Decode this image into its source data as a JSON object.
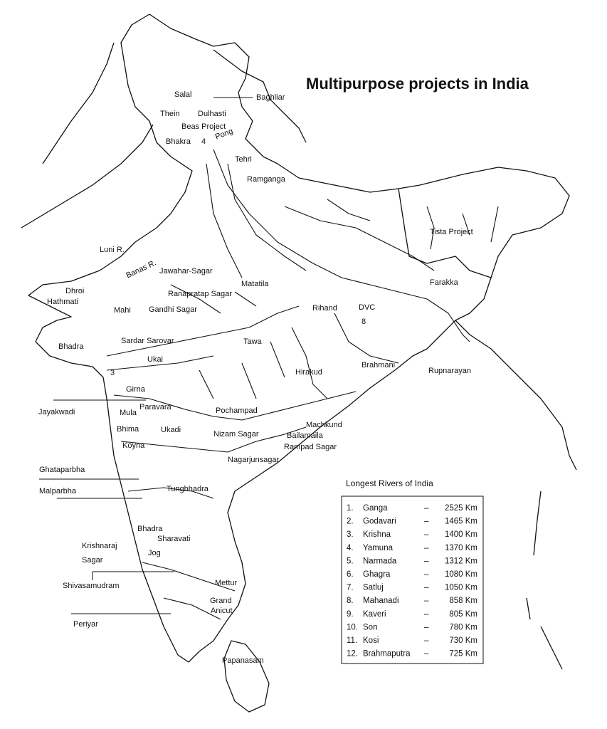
{
  "title": "Multipurpose projects in India",
  "labels": [
    "Salal",
    "Baghliar",
    "Thein",
    "Dulhasti",
    "Beas Project",
    "Pong",
    "Bhakra",
    "4",
    "Tehri",
    "Ramganga",
    "Tista Project",
    "Luni R.",
    "Banas R.",
    "Jawahar-Sagar",
    "Ranapratap Sagar",
    "Matatila",
    "Farakka",
    "Dhroi",
    "Hathmati",
    "Mahi",
    "Gandhi Sagar",
    "Rihand",
    "DVC",
    "8",
    "Sardar Sarovar",
    "Tawa",
    "Bhadra",
    "Ukai",
    "3",
    "Brahmani",
    "Rupnarayan",
    "Hirakud",
    "Girna",
    "Jayakwadi",
    "Paravara",
    "Mula",
    "Pochampad",
    "Machkund",
    "Bhima",
    "Ukadi",
    "Nizam Sagar",
    "Bailamaila",
    "Rampad Sagar",
    "Koyna",
    "Nagarjunsagar",
    "Ghataparbha",
    "Malparbha",
    "Tungbhadra",
    "Bhadra",
    "Sharavati",
    "Krishnaraj",
    "Sagar",
    "Jog",
    "Shivasamudram",
    "Mettur",
    "Grand",
    "Anicut",
    "Periyar",
    "Papanasam"
  ],
  "table": {
    "title": "Longest Rivers of India",
    "separator": "–",
    "rows": [
      [
        "1.",
        "Ganga",
        "2525 Km"
      ],
      [
        "2.",
        "Godavari",
        "1465 Km"
      ],
      [
        "3.",
        "Krishna",
        "1400 Km"
      ],
      [
        "4.",
        "Yamuna",
        "1370 Km"
      ],
      [
        "5.",
        "Narmada",
        "1312 Km"
      ],
      [
        "6.",
        "Ghagra",
        "1080 Km"
      ],
      [
        "7.",
        "Satluj",
        "1050 Km"
      ],
      [
        "8.",
        "Mahanadi",
        "858 Km"
      ],
      [
        "9.",
        "Kaveri",
        "805 Km"
      ],
      [
        "10.",
        "Son",
        "780 Km"
      ],
      [
        "11.",
        "Kosi",
        "730 Km"
      ],
      [
        "12.",
        "Brahmaputra",
        "725 Km"
      ]
    ]
  }
}
